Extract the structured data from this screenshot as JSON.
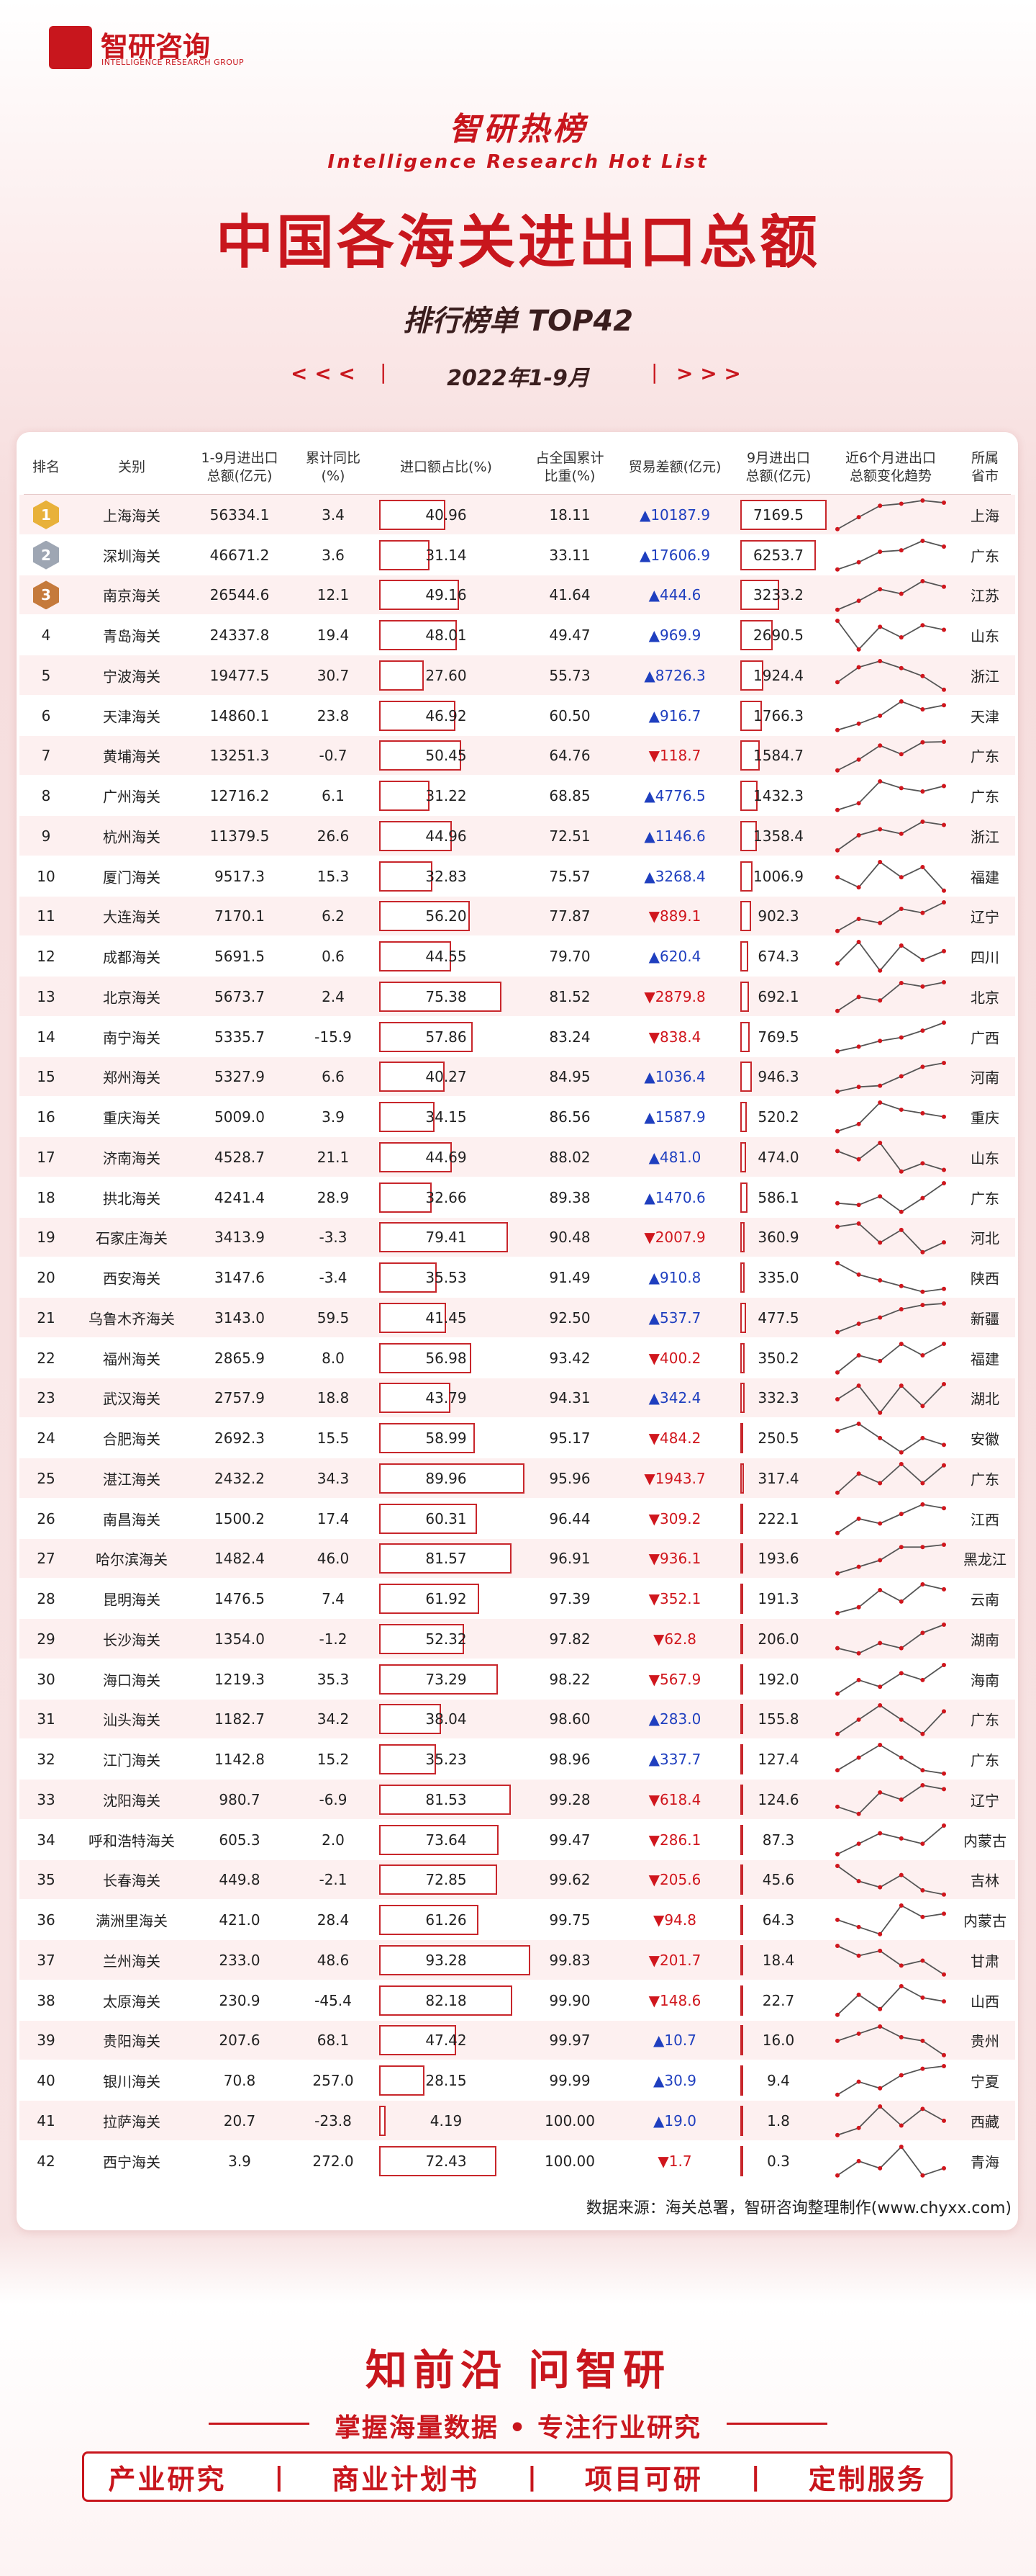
{
  "header": {
    "logo_cn": "智研咨询",
    "logo_en": "INTELLIGENCE RESEARCH GROUP",
    "badge": "智研热榜",
    "badge_en": "Intelligence Research Hot List",
    "title": "中国各海关进出口总额",
    "subtitle": "排行榜单 TOP42",
    "nav_prev": "< < <",
    "period": "2022年1-9月",
    "nav_next": "> > >"
  },
  "table": {
    "columns": [
      "排名",
      "关别",
      "1-9月进出口\n总额(亿元)",
      "累计同比\n(%)",
      "进口额占比(%)",
      "占全国累计\n比重(%)",
      "贸易差额(亿元)",
      "9月进出口\n总额(亿元)",
      "近6个月进出口\n总额变化趋势",
      "所属省市"
    ],
    "rows": [
      {
        "rank": "1",
        "name": "上海海关",
        "total": "56334.1",
        "yoy": "3.4",
        "import_share": "40.96",
        "cum_share": "18.11",
        "balance": "▲10187.9",
        "sept": "7169.5",
        "trend": [
          4162,
          5523,
          6826,
          7056,
          7420,
          7169.5
        ],
        "province": "上海"
      },
      {
        "rank": "2",
        "name": "深圳海关",
        "total": "46671.2",
        "yoy": "3.6",
        "import_share": "31.14",
        "cum_share": "33.11",
        "balance": "▲17606.9",
        "sept": "6253.7",
        "trend": [
          4964,
          5373,
          5963,
          6046,
          6580,
          6253.7
        ],
        "province": "广东"
      },
      {
        "rank": "3",
        "name": "南京海关",
        "total": "26544.6",
        "yoy": "12.1",
        "import_share": "49.16",
        "cum_share": "41.64",
        "balance": "▲444.6",
        "sept": "3233.2",
        "trend": [
          2786,
          2960,
          3185,
          3097,
          3342,
          3233.2
        ],
        "province": "江苏"
      },
      {
        "rank": "4",
        "name": "青岛海关",
        "total": "24337.8",
        "yoy": "19.4",
        "import_share": "48.01",
        "cum_share": "49.47",
        "balance": "▲969.9",
        "sept": "2690.5",
        "trend": [
          2750,
          2560,
          2710,
          2640,
          2720,
          2690.5
        ],
        "province": "山东"
      },
      {
        "rank": "5",
        "name": "宁波海关",
        "total": "19477.5",
        "yoy": "30.7",
        "import_share": "27.60",
        "cum_share": "55.73",
        "balance": "▲8726.3",
        "sept": "1924.4",
        "trend": [
          2010,
          2180,
          2250,
          2170,
          2080,
          1924.4
        ],
        "province": "浙江"
      },
      {
        "rank": "6",
        "name": "天津海关",
        "total": "14860.1",
        "yoy": "23.8",
        "import_share": "46.92",
        "cum_share": "60.50",
        "balance": "▲916.7",
        "sept": "1766.3",
        "trend": [
          1610,
          1650,
          1700,
          1790,
          1740,
          1766.3
        ],
        "province": "天津"
      },
      {
        "rank": "7",
        "name": "黄埔海关",
        "total": "13251.3",
        "yoy": "-0.7",
        "import_share": "50.45",
        "cum_share": "64.76",
        "balance": "▼118.7",
        "sept": "1584.7",
        "trend": [
          1320,
          1420,
          1550,
          1470,
          1580,
          1584.7
        ],
        "province": "广东"
      },
      {
        "rank": "8",
        "name": "广州海关",
        "total": "12716.2",
        "yoy": "6.1",
        "import_share": "31.22",
        "cum_share": "68.85",
        "balance": "▲4776.5",
        "sept": "1432.3",
        "trend": [
          1290,
          1330,
          1460,
          1420,
          1400,
          1432.3
        ],
        "province": "广东"
      },
      {
        "rank": "9",
        "name": "杭州海关",
        "total": "11379.5",
        "yoy": "26.6",
        "import_share": "44.96",
        "cum_share": "72.51",
        "balance": "▲1146.6",
        "sept": "1358.4",
        "trend": [
          1190,
          1290,
          1330,
          1300,
          1380,
          1358.4
        ],
        "province": "浙江"
      },
      {
        "rank": "10",
        "name": "厦门海关",
        "total": "9517.3",
        "yoy": "15.3",
        "import_share": "32.83",
        "cum_share": "75.57",
        "balance": "▲3268.4",
        "sept": "1006.9",
        "trend": [
          1060,
          1020,
          1120,
          1060,
          1100,
          1006.9
        ],
        "province": "福建"
      },
      {
        "rank": "11",
        "name": "大连海关",
        "total": "7170.1",
        "yoy": "6.2",
        "import_share": "56.20",
        "cum_share": "77.87",
        "balance": "▼889.1",
        "sept": "902.3",
        "trend": [
          760,
          820,
          800,
          870,
          850,
          902.3
        ],
        "province": "辽宁"
      },
      {
        "rank": "12",
        "name": "成都海关",
        "total": "5691.5",
        "yoy": "0.6",
        "import_share": "44.55",
        "cum_share": "79.70",
        "balance": "▲620.4",
        "sept": "674.3",
        "trend": [
          640,
          700,
          620,
          690,
          650,
          674.3
        ],
        "province": "四川"
      },
      {
        "rank": "13",
        "name": "北京海关",
        "total": "5673.7",
        "yoy": "2.4",
        "import_share": "75.38",
        "cum_share": "81.52",
        "balance": "▼2879.8",
        "sept": "692.1",
        "trend": [
          610,
          650,
          640,
          690,
          680,
          692.1
        ],
        "province": "北京"
      },
      {
        "rank": "14",
        "name": "南宁海关",
        "total": "5335.7",
        "yoy": "-15.9",
        "import_share": "57.86",
        "cum_share": "83.24",
        "balance": "▼838.4",
        "sept": "769.5",
        "trend": [
          520,
          560,
          610,
          640,
          700,
          769.5
        ],
        "province": "广西"
      },
      {
        "rank": "15",
        "name": "郑州海关",
        "total": "5327.9",
        "yoy": "6.6",
        "import_share": "40.27",
        "cum_share": "84.95",
        "balance": "▲1036.4",
        "sept": "946.3",
        "trend": [
          460,
          540,
          560,
          720,
          880,
          946.3
        ],
        "province": "河南"
      },
      {
        "rank": "16",
        "name": "重庆海关",
        "total": "5009.0",
        "yoy": "3.9",
        "import_share": "34.15",
        "cum_share": "86.56",
        "balance": "▲1587.9",
        "sept": "520.2",
        "trend": [
          480,
          500,
          560,
          540,
          530,
          520.2
        ],
        "province": "重庆"
      },
      {
        "rank": "17",
        "name": "济南海关",
        "total": "4528.7",
        "yoy": "21.1",
        "import_share": "44.69",
        "cum_share": "88.02",
        "balance": "▲481.0",
        "sept": "474.0",
        "trend": [
          520,
          500,
          540,
          470,
          490,
          474.0
        ],
        "province": "山东"
      },
      {
        "rank": "18",
        "name": "拱北海关",
        "total": "4241.4",
        "yoy": "28.9",
        "import_share": "32.66",
        "cum_share": "89.38",
        "balance": "▲1470.6",
        "sept": "586.1",
        "trend": [
          470,
          460,
          510,
          420,
          500,
          586.1
        ],
        "province": "广东"
      },
      {
        "rank": "19",
        "name": "石家庄海关",
        "total": "3413.9",
        "yoy": "-3.3",
        "import_share": "79.41",
        "cum_share": "90.48",
        "balance": "▼2007.9",
        "sept": "360.9",
        "trend": [
          410,
          420,
          360,
          400,
          330,
          360.9
        ],
        "province": "河北"
      },
      {
        "rank": "20",
        "name": "西安海关",
        "total": "3147.6",
        "yoy": "-3.4",
        "import_share": "35.53",
        "cum_share": "91.49",
        "balance": "▲910.8",
        "sept": "335.0",
        "trend": [
          380,
          360,
          350,
          340,
          330,
          335.0
        ],
        "province": "陕西"
      },
      {
        "rank": "21",
        "name": "乌鲁木齐海关",
        "total": "3143.0",
        "yoy": "59.5",
        "import_share": "41.45",
        "cum_share": "92.50",
        "balance": "▲537.7",
        "sept": "477.5",
        "trend": [
          340,
          380,
          410,
          450,
          470,
          477.5
        ],
        "province": "新疆"
      },
      {
        "rank": "22",
        "name": "福州海关",
        "total": "2865.9",
        "yoy": "8.0",
        "import_share": "56.98",
        "cum_share": "93.42",
        "balance": "▼400.2",
        "sept": "350.2",
        "trend": [
          300,
          330,
          320,
          350,
          330,
          350.2
        ],
        "province": "福建"
      },
      {
        "rank": "23",
        "name": "武汉海关",
        "total": "2757.9",
        "yoy": "18.8",
        "import_share": "43.79",
        "cum_share": "94.31",
        "balance": "▲342.4",
        "sept": "332.3",
        "trend": [
          310,
          330,
          290,
          330,
          300,
          332.3
        ],
        "province": "湖北"
      },
      {
        "rank": "24",
        "name": "合肥海关",
        "total": "2692.3",
        "yoy": "15.5",
        "import_share": "58.99",
        "cum_share": "95.17",
        "balance": "▼484.2",
        "sept": "250.5",
        "trend": [
          270,
          280,
          260,
          240,
          260,
          250.5
        ],
        "province": "安徽"
      },
      {
        "rank": "25",
        "name": "湛江海关",
        "total": "2432.2",
        "yoy": "34.3",
        "import_share": "89.96",
        "cum_share": "95.96",
        "balance": "▼1943.7",
        "sept": "317.4",
        "trend": [
          260,
          300,
          280,
          320,
          280,
          317.4
        ],
        "province": "广东"
      },
      {
        "rank": "26",
        "name": "南昌海关",
        "total": "1500.2",
        "yoy": "17.4",
        "import_share": "60.31",
        "cum_share": "96.44",
        "balance": "▼309.2",
        "sept": "222.1",
        "trend": [
          170,
          200,
          190,
          210,
          230,
          222.1
        ],
        "province": "江西"
      },
      {
        "rank": "27",
        "name": "哈尔滨海关",
        "total": "1482.4",
        "yoy": "46.0",
        "import_share": "81.57",
        "cum_share": "96.91",
        "balance": "▼936.1",
        "sept": "193.6",
        "trend": [
          150,
          160,
          170,
          190,
          190,
          193.6
        ],
        "province": "黑龙江"
      },
      {
        "rank": "28",
        "name": "昆明海关",
        "total": "1476.5",
        "yoy": "7.4",
        "import_share": "61.92",
        "cum_share": "97.39",
        "balance": "▼352.1",
        "sept": "191.3",
        "trend": [
          150,
          160,
          190,
          170,
          200,
          191.3
        ],
        "province": "云南"
      },
      {
        "rank": "29",
        "name": "长沙海关",
        "total": "1354.0",
        "yoy": "-1.2",
        "import_share": "52.32",
        "cum_share": "97.82",
        "balance": "▼62.8",
        "sept": "206.0",
        "trend": [
          160,
          150,
          170,
          160,
          190,
          206.0
        ],
        "province": "湖南"
      },
      {
        "rank": "30",
        "name": "海口海关",
        "total": "1219.3",
        "yoy": "35.3",
        "import_share": "73.29",
        "cum_share": "98.22",
        "balance": "▼567.9",
        "sept": "192.0",
        "trend": [
          150,
          170,
          160,
          180,
          170,
          192.0
        ],
        "province": "海南"
      },
      {
        "rank": "31",
        "name": "汕头海关",
        "total": "1182.7",
        "yoy": "34.2",
        "import_share": "38.04",
        "cum_share": "98.60",
        "balance": "▲283.0",
        "sept": "155.8",
        "trend": [
          140,
          150,
          160,
          150,
          140,
          155.8
        ],
        "province": "广东"
      },
      {
        "rank": "32",
        "name": "江门海关",
        "total": "1142.8",
        "yoy": "15.2",
        "import_share": "35.23",
        "cum_share": "98.96",
        "balance": "▲337.7",
        "sept": "127.4",
        "trend": [
          130,
          140,
          150,
          140,
          130,
          127.4
        ],
        "province": "广东"
      },
      {
        "rank": "33",
        "name": "沈阳海关",
        "total": "980.7",
        "yoy": "-6.9",
        "import_share": "81.53",
        "cum_share": "99.28",
        "balance": "▼618.4",
        "sept": "124.6",
        "trend": [
          100,
          90,
          120,
          110,
          130,
          124.6
        ],
        "province": "辽宁"
      },
      {
        "rank": "34",
        "name": "呼和浩特海关",
        "total": "605.3",
        "yoy": "2.0",
        "import_share": "73.64",
        "cum_share": "99.47",
        "balance": "▼286.1",
        "sept": "87.3",
        "trend": [
          60,
          70,
          80,
          75,
          70,
          87.3
        ],
        "province": "内蒙古"
      },
      {
        "rank": "35",
        "name": "长春海关",
        "total": "449.8",
        "yoy": "-2.1",
        "import_share": "72.85",
        "cum_share": "99.62",
        "balance": "▼205.6",
        "sept": "45.6",
        "trend": [
          55,
          50,
          48,
          52,
          47,
          45.6
        ],
        "province": "吉林"
      },
      {
        "rank": "36",
        "name": "满洲里海关",
        "total": "421.0",
        "yoy": "28.4",
        "import_share": "61.26",
        "cum_share": "99.75",
        "balance": "▼94.8",
        "sept": "64.3",
        "trend": [
          60,
          55,
          50,
          70,
          62,
          64.3
        ],
        "province": "内蒙古"
      },
      {
        "rank": "37",
        "name": "兰州海关",
        "total": "233.0",
        "yoy": "48.6",
        "import_share": "93.28",
        "cum_share": "99.83",
        "balance": "▼201.7",
        "sept": "18.4",
        "trend": [
          30,
          26,
          28,
          22,
          24,
          18.4
        ],
        "province": "甘肃"
      },
      {
        "rank": "38",
        "name": "太原海关",
        "total": "230.9",
        "yoy": "-45.4",
        "import_share": "82.18",
        "cum_share": "99.90",
        "balance": "▼148.6",
        "sept": "22.7",
        "trend": [
          18,
          25,
          20,
          28,
          24,
          22.7
        ],
        "province": "山西"
      },
      {
        "rank": "39",
        "name": "贵阳海关",
        "total": "207.6",
        "yoy": "68.1",
        "import_share": "47.42",
        "cum_share": "99.97",
        "balance": "▲10.7",
        "sept": "16.0",
        "trend": [
          20,
          22,
          24,
          21,
          20,
          16.0
        ],
        "province": "贵州"
      },
      {
        "rank": "40",
        "name": "银川海关",
        "total": "70.8",
        "yoy": "257.0",
        "import_share": "28.15",
        "cum_share": "99.99",
        "balance": "▲30.9",
        "sept": "9.4",
        "trend": [
          5,
          7,
          6,
          8,
          9,
          9.4
        ],
        "province": "宁夏"
      },
      {
        "rank": "41",
        "name": "拉萨海关",
        "total": "20.7",
        "yoy": "-23.8",
        "import_share": "4.19",
        "cum_share": "100.00",
        "balance": "▲19.0",
        "sept": "1.8",
        "trend": [
          1.2,
          1.5,
          2.4,
          1.6,
          2.3,
          1.8
        ],
        "province": "西藏"
      },
      {
        "rank": "42",
        "name": "西宁海关",
        "total": "3.9",
        "yoy": "272.0",
        "import_share": "72.43",
        "cum_share": "100.00",
        "balance": "▼1.7",
        "sept": "0.3",
        "trend": [
          0.2,
          0.4,
          0.3,
          0.6,
          0.2,
          0.3
        ],
        "province": "青海"
      }
    ],
    "source": "数据来源：海关总署，智研咨询整理制作(www.chyxx.com)"
  },
  "footer": {
    "slogan": "知前沿 问智研",
    "tagline": "掌握海量数据 • 专注行业研究",
    "services": [
      "产业研究",
      "商业计划书",
      "项目可研",
      "定制服务"
    ]
  }
}
